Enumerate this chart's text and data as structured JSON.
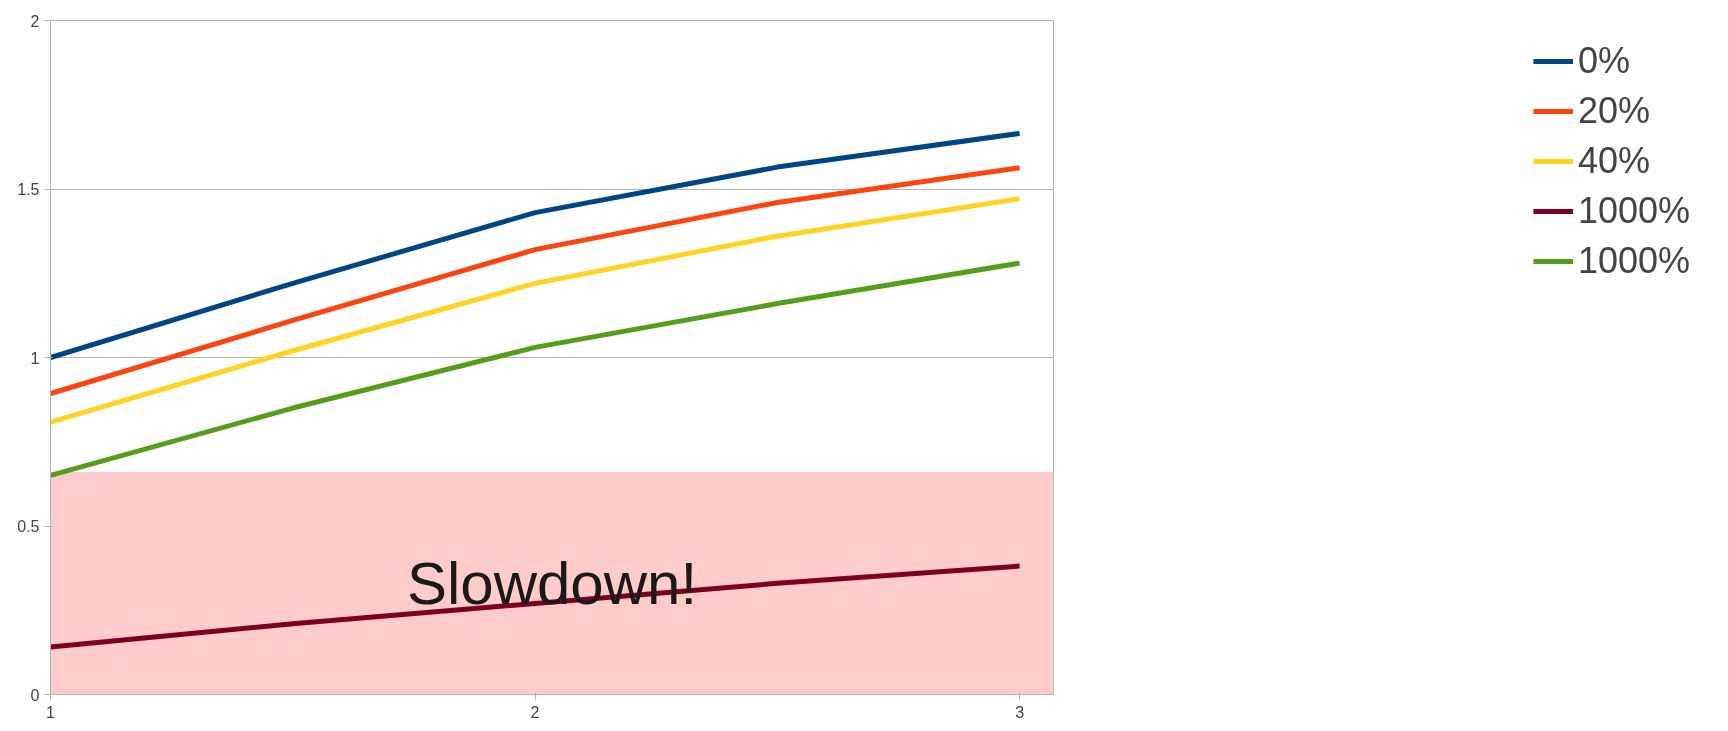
{
  "chart_data": {
    "type": "line",
    "x": [
      1,
      1.5,
      2,
      2.5,
      3
    ],
    "series": [
      {
        "name": "0%",
        "color": "#004586",
        "values": [
          1.0,
          1.22,
          1.43,
          1.565,
          1.665
        ]
      },
      {
        "name": "20%",
        "color": "#ff420e",
        "values": [
          0.893,
          1.11,
          1.32,
          1.46,
          1.563
        ]
      },
      {
        "name": "40%",
        "color": "#ffd320",
        "values": [
          0.808,
          1.02,
          1.22,
          1.36,
          1.471
        ]
      },
      {
        "name": "1000%",
        "color": "#7e0021",
        "values": [
          0.141,
          0.21,
          0.27,
          0.33,
          0.381
        ]
      },
      {
        "name": "1000%",
        "color": "#579d1c",
        "values": [
          0.65,
          0.85,
          1.03,
          1.16,
          1.28
        ]
      }
    ],
    "xlim": [
      1,
      3.07
    ],
    "xticks": [
      1,
      2,
      3
    ],
    "ylim": [
      0,
      2
    ],
    "yticks": [
      0,
      0.5,
      1,
      1.5,
      2
    ],
    "bands": [
      {
        "axis": "y",
        "from": 0,
        "to": 0.66,
        "label": "Slowdown!",
        "color": "#ffcccc"
      }
    ],
    "grid": "y",
    "legend": "right",
    "marker": "none",
    "line_style": "solid"
  }
}
